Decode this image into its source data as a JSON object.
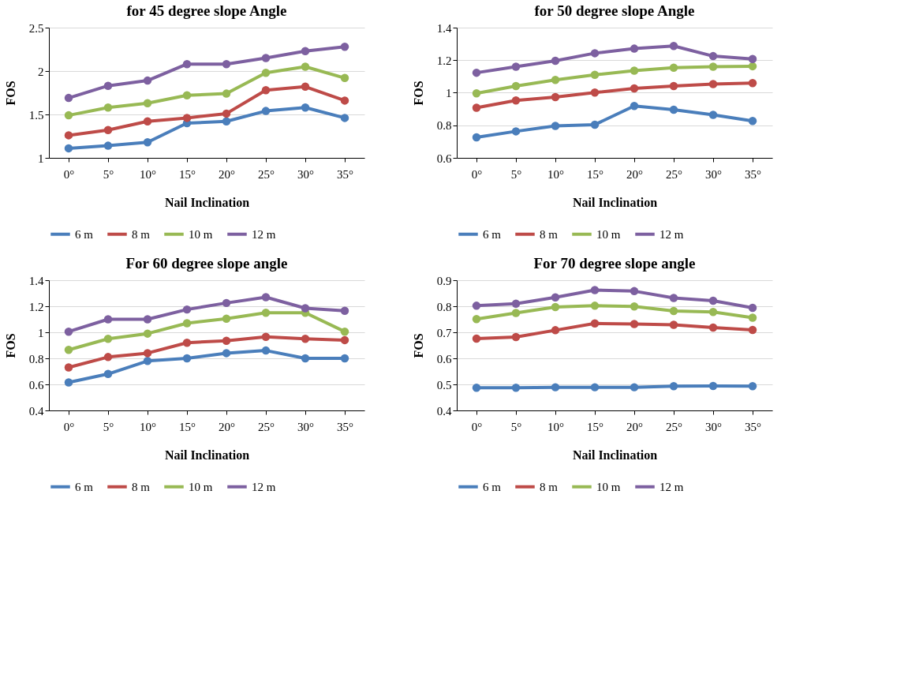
{
  "chart_data": [
    {
      "type": "line",
      "title": "for 45 degree slope Angle",
      "xlabel": "Nail Inclination",
      "ylabel": "FOS",
      "categories": [
        "0°",
        "5°",
        "10°",
        "15°",
        "20°",
        "25°",
        "30°",
        "35°"
      ],
      "ylim": [
        1,
        2.5
      ],
      "yticks": [
        1,
        1.5,
        2,
        2.5
      ],
      "grid": "y",
      "legend": "bottom",
      "marker": "circle",
      "series": [
        {
          "name": "6 m",
          "color": "#4a7ebb",
          "values": [
            1.11,
            1.14,
            1.18,
            1.4,
            1.42,
            1.54,
            1.58,
            1.46
          ]
        },
        {
          "name": "8 m",
          "color": "#be4b48",
          "values": [
            1.26,
            1.32,
            1.42,
            1.46,
            1.51,
            1.78,
            1.82,
            1.66
          ]
        },
        {
          "name": "10 m",
          "color": "#98b954",
          "values": [
            1.49,
            1.58,
            1.63,
            1.72,
            1.74,
            1.98,
            2.05,
            1.92
          ]
        },
        {
          "name": "12 m",
          "color": "#7d60a0",
          "values": [
            1.69,
            1.83,
            1.89,
            2.08,
            2.08,
            2.15,
            2.23,
            2.28
          ]
        }
      ]
    },
    {
      "type": "line",
      "title": "for 50 degree slope Angle",
      "xlabel": "Nail Inclination",
      "ylabel": "FOS",
      "categories": [
        "0°",
        "5°",
        "10°",
        "15°",
        "20°",
        "25°",
        "30°",
        "35°"
      ],
      "ylim": [
        0.6,
        1.4
      ],
      "yticks": [
        0.6,
        0.8,
        1,
        1.2,
        1.4
      ],
      "grid": "y",
      "legend": "bottom",
      "marker": "circle",
      "series": [
        {
          "name": "6 m",
          "color": "#4a7ebb",
          "values": [
            0.726,
            0.763,
            0.796,
            0.804,
            0.919,
            0.896,
            0.864,
            0.827
          ]
        },
        {
          "name": "8 m",
          "color": "#be4b48",
          "values": [
            0.908,
            0.953,
            0.973,
            1.001,
            1.027,
            1.041,
            1.053,
            1.059
          ]
        },
        {
          "name": "10 m",
          "color": "#98b954",
          "values": [
            0.996,
            1.041,
            1.079,
            1.11,
            1.136,
            1.154,
            1.16,
            1.163
          ]
        },
        {
          "name": "12 m",
          "color": "#7d60a0",
          "values": [
            1.123,
            1.16,
            1.196,
            1.243,
            1.271,
            1.287,
            1.225,
            1.207
          ]
        }
      ]
    },
    {
      "type": "line",
      "title": "For 60 degree slope angle",
      "xlabel": "Nail Inclination",
      "ylabel": "FOS",
      "categories": [
        "0°",
        "5°",
        "10°",
        "15°",
        "20°",
        "25°",
        "30°",
        "35°"
      ],
      "ylim": [
        0.4,
        1.4
      ],
      "yticks": [
        0.4,
        0.6,
        0.8,
        1,
        1.2,
        1.4
      ],
      "grid": "y",
      "legend": "bottom",
      "marker": "circle",
      "series": [
        {
          "name": "6 m",
          "color": "#4a7ebb",
          "values": [
            0.615,
            0.68,
            0.78,
            0.8,
            0.84,
            0.86,
            0.8,
            0.8
          ]
        },
        {
          "name": "8 m",
          "color": "#be4b48",
          "values": [
            0.73,
            0.81,
            0.84,
            0.92,
            0.935,
            0.965,
            0.95,
            0.94
          ]
        },
        {
          "name": "10 m",
          "color": "#98b954",
          "values": [
            0.865,
            0.95,
            0.99,
            1.07,
            1.105,
            1.15,
            1.15,
            1.005
          ]
        },
        {
          "name": "12 m",
          "color": "#7d60a0",
          "values": [
            1.005,
            1.1,
            1.1,
            1.175,
            1.225,
            1.27,
            1.185,
            1.165
          ]
        }
      ]
    },
    {
      "type": "line",
      "title": "For 70 degree slope angle",
      "xlabel": "Nail Inclination",
      "ylabel": "FOS",
      "categories": [
        "0°",
        "5°",
        "10°",
        "15°",
        "20°",
        "25°",
        "30°",
        "35°"
      ],
      "ylim": [
        0.4,
        0.9
      ],
      "yticks": [
        0.4,
        0.5,
        0.6,
        0.7,
        0.8,
        0.9
      ],
      "grid": "y",
      "legend": "bottom",
      "marker": "circle",
      "series": [
        {
          "name": "6 m",
          "color": "#4a7ebb",
          "values": [
            0.487,
            0.487,
            0.489,
            0.489,
            0.489,
            0.493,
            0.494,
            0.493
          ]
        },
        {
          "name": "8 m",
          "color": "#be4b48",
          "values": [
            0.676,
            0.682,
            0.708,
            0.734,
            0.732,
            0.729,
            0.718,
            0.709
          ]
        },
        {
          "name": "10 m",
          "color": "#98b954",
          "values": [
            0.751,
            0.774,
            0.797,
            0.802,
            0.799,
            0.782,
            0.778,
            0.756
          ]
        },
        {
          "name": "12 m",
          "color": "#7d60a0",
          "values": [
            0.802,
            0.81,
            0.834,
            0.862,
            0.858,
            0.832,
            0.821,
            0.794
          ]
        }
      ]
    }
  ]
}
